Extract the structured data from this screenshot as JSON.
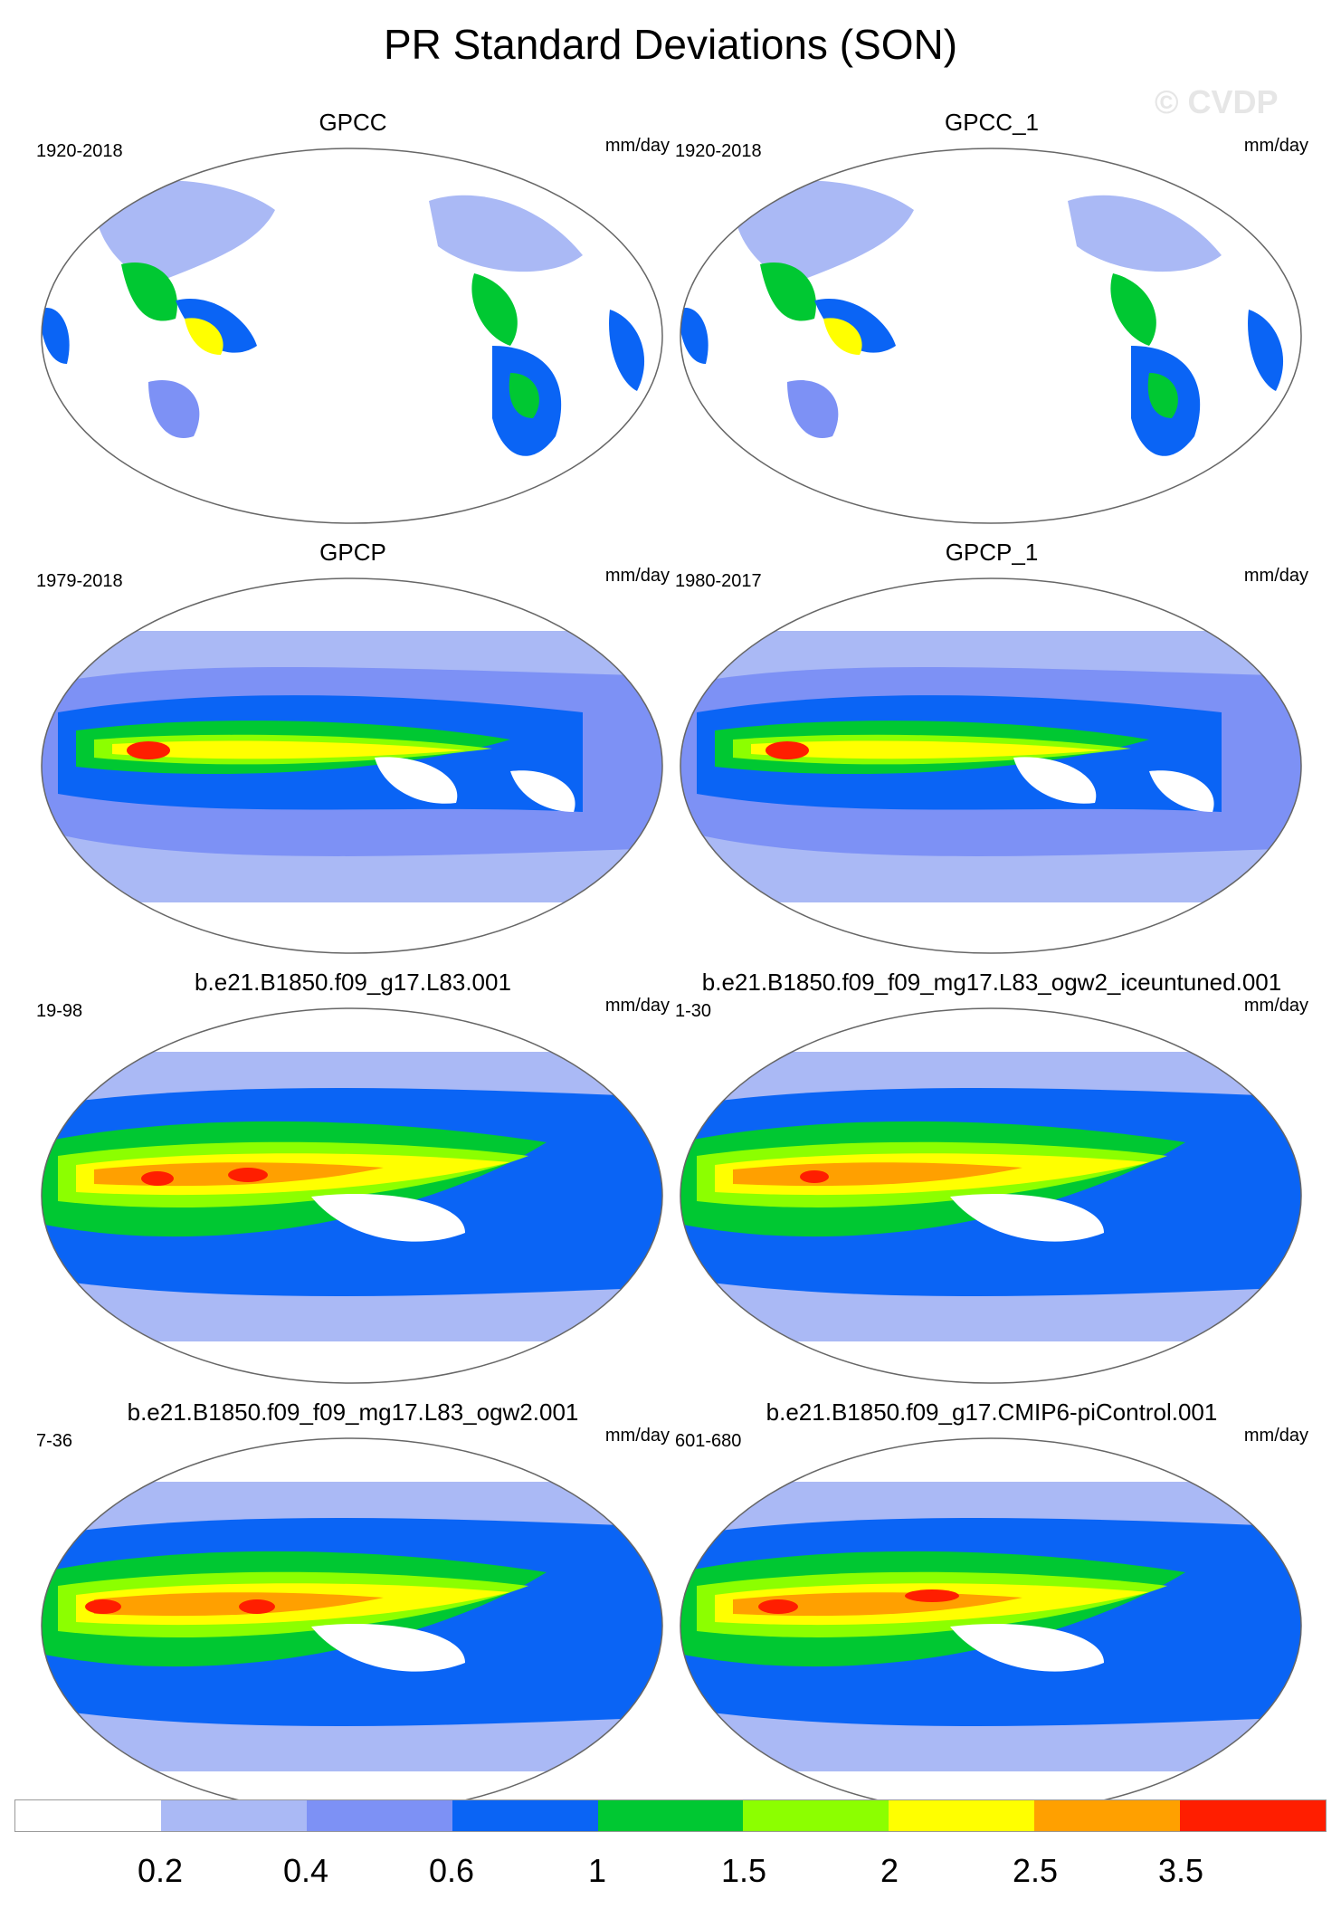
{
  "title": "PR Standard Deviations (SON)",
  "watermark": "© CVDP",
  "colorbar": {
    "colors": [
      "#ffffff",
      "#aab9f5",
      "#7d91f5",
      "#0a64f5",
      "#00c832",
      "#8cff00",
      "#ffff00",
      "#ffa000",
      "#ff1e00"
    ],
    "labels": [
      "0.2",
      "0.4",
      "0.6",
      "1",
      "1.5",
      "2",
      "2.5",
      "3.5"
    ]
  },
  "panels": [
    {
      "title": "GPCC",
      "years": "1920-2018",
      "units": "mm/day"
    },
    {
      "title": "GPCC_1",
      "years": "1920-2018",
      "units": "mm/day"
    },
    {
      "title": "GPCP",
      "years": "1979-2018",
      "units": "mm/day"
    },
    {
      "title": "GPCP_1",
      "years": "1980-2017",
      "units": "mm/day"
    },
    {
      "title": "b.e21.B1850.f09_g17.L83.001",
      "years": "19-98",
      "units": "mm/day"
    },
    {
      "title": "b.e21.B1850.f09_f09_mg17.L83_ogw2_iceuntuned.001",
      "years": "1-30",
      "units": "mm/day"
    },
    {
      "title": "b.e21.B1850.f09_f09_mg17.L83_ogw2.001",
      "years": "7-36",
      "units": "mm/day"
    },
    {
      "title": "b.e21.B1850.f09_g17.CMIP6-piControl.001",
      "years": "601-680",
      "units": "mm/day"
    }
  ]
}
